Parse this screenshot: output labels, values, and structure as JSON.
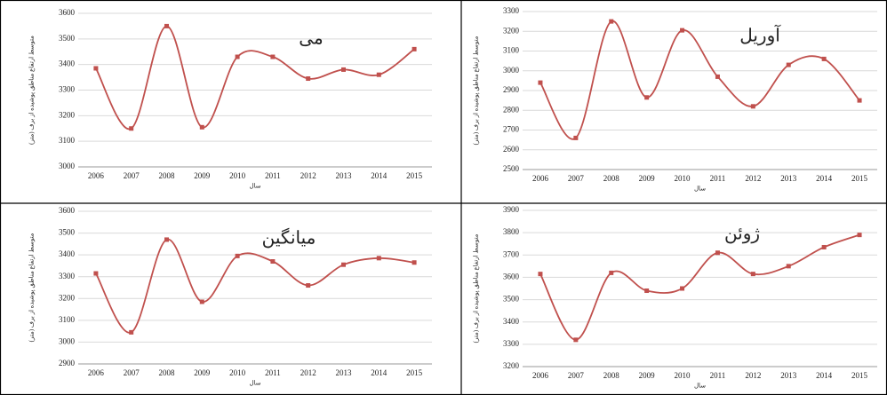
{
  "chart_data": [
    {
      "type": "line",
      "title": "می",
      "ylabel": "متوسط ارتفاع مناطق پوشیده از برف (متر)",
      "xlabel": "سال",
      "categories": [
        "2006",
        "2007",
        "2008",
        "2009",
        "2010",
        "2011",
        "2012",
        "2013",
        "2014",
        "2015"
      ],
      "values": [
        3385,
        3150,
        3550,
        3155,
        3430,
        3430,
        3345,
        3380,
        3360,
        3460
      ],
      "color": "#c0504d",
      "ylim": [
        3000,
        3600
      ],
      "yticks": [
        3000,
        3100,
        3200,
        3300,
        3400,
        3500,
        3600
      ],
      "grid": true
    },
    {
      "type": "line",
      "title": "آوریل",
      "ylabel": "متوسط ارتفاع مناطق پوشیده از برف (متر)",
      "xlabel": "سال",
      "categories": [
        "2006",
        "2007",
        "2008",
        "2009",
        "2010",
        "2011",
        "2012",
        "2013",
        "2014",
        "2015"
      ],
      "values": [
        2940,
        2660,
        3250,
        2865,
        3205,
        2970,
        2820,
        3030,
        3060,
        2850
      ],
      "color": "#c0504d",
      "ylim": [
        2500,
        3300
      ],
      "yticks": [
        2500,
        2600,
        2700,
        2800,
        2900,
        3000,
        3100,
        3200,
        3300
      ],
      "grid": true
    },
    {
      "type": "line",
      "title": "میانگین",
      "ylabel": "متوسط ارتفاع مناطق پوشیده از برف (متر)",
      "xlabel": "سال",
      "categories": [
        "2006",
        "2007",
        "2008",
        "2009",
        "2010",
        "2011",
        "2012",
        "2013",
        "2014",
        "2015"
      ],
      "values": [
        3315,
        3045,
        3470,
        3185,
        3395,
        3370,
        3260,
        3355,
        3385,
        3365
      ],
      "color": "#c0504d",
      "ylim": [
        2900,
        3600
      ],
      "yticks": [
        2900,
        3000,
        3100,
        3200,
        3300,
        3400,
        3500,
        3600
      ],
      "grid": true
    },
    {
      "type": "line",
      "title": "ژوئن",
      "ylabel": "متوسط ارتفاع مناطق پوشیده از برف (متر)",
      "xlabel": "سال",
      "categories": [
        "2006",
        "2007",
        "2008",
        "2009",
        "2010",
        "2011",
        "2012",
        "2013",
        "2014",
        "2015"
      ],
      "values": [
        3615,
        3320,
        3620,
        3540,
        3550,
        3710,
        3615,
        3650,
        3735,
        3790
      ],
      "color": "#c0504d",
      "ylim": [
        3200,
        3900
      ],
      "yticks": [
        3200,
        3300,
        3400,
        3500,
        3600,
        3700,
        3800,
        3900
      ],
      "grid": true
    }
  ]
}
